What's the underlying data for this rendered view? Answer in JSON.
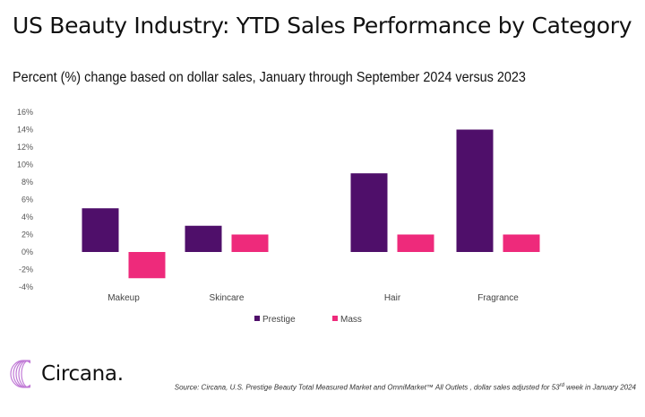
{
  "header": {
    "title": "US Beauty Industry: YTD Sales Performance by Category",
    "subtitle": "Percent (%) change based on dollar sales, January through September 2024 versus 2023"
  },
  "chart_data": {
    "type": "bar",
    "title": "US Beauty Industry: YTD Sales Performance by Category",
    "subtitle": "Percent (%) change based on dollar sales, January through September 2024 versus 2023",
    "xlabel": "",
    "ylabel": "",
    "categories": [
      "Makeup",
      "Skincare",
      "Hair",
      "Fragrance"
    ],
    "series": [
      {
        "name": "Prestige",
        "color": "#4f0f6a",
        "values": [
          5,
          3,
          9,
          14
        ]
      },
      {
        "name": "Mass",
        "color": "#ee2a7b",
        "values": [
          -3,
          2,
          2,
          2
        ]
      }
    ],
    "ylim": [
      -4,
      16
    ],
    "yticks": [
      16,
      14,
      12,
      10,
      8,
      6,
      4,
      2,
      0,
      -2,
      -4
    ],
    "ytick_labels": [
      "16%",
      "14%",
      "12%",
      "10%",
      "8%",
      "6%",
      "4%",
      "2%",
      "0%",
      "-2%",
      "-4%"
    ],
    "grid": false,
    "legend_position": "bottom"
  },
  "footer": {
    "logo_text": "Circana.",
    "source_prefix": "Source: Circana, U.S. Prestige Beauty Total Measured Market and OmniMarket™ All Outlets , dollar sales adjusted for 53",
    "source_sup": "rd",
    "source_suffix": " week in January 2024"
  }
}
